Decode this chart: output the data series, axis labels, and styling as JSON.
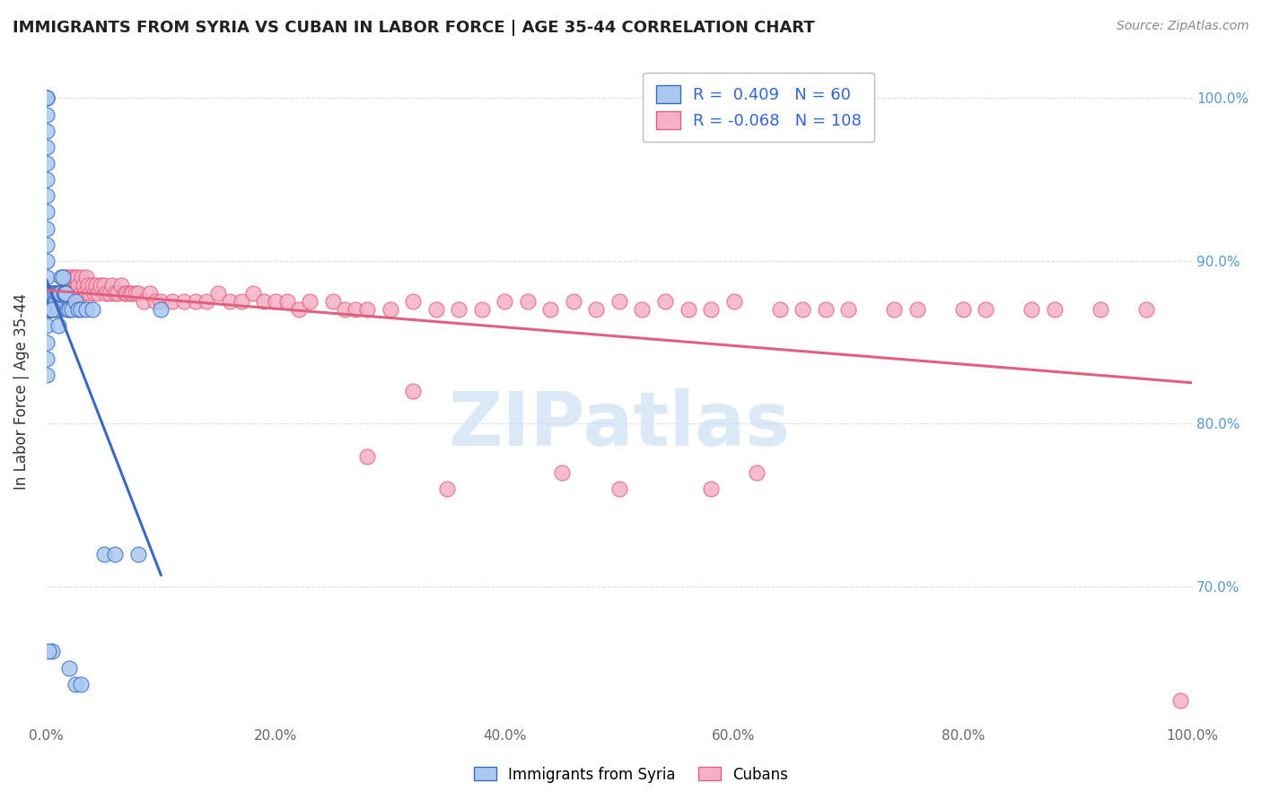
{
  "title": "IMMIGRANTS FROM SYRIA VS CUBAN IN LABOR FORCE | AGE 35-44 CORRELATION CHART",
  "source": "Source: ZipAtlas.com",
  "ylabel": "In Labor Force | Age 35-44",
  "xlim": [
    0.0,
    1.0
  ],
  "ylim": [
    0.615,
    1.025
  ],
  "syria_R": 0.409,
  "syria_N": 60,
  "cuba_R": -0.068,
  "cuba_N": 108,
  "syria_color": "#aac8f0",
  "cuba_color": "#f5b0c5",
  "syria_line_color": "#3a6abf",
  "cuba_line_color": "#e06080",
  "background_color": "#ffffff",
  "grid_color": "#dddddd",
  "watermark_text": "ZIPatlas",
  "watermark_color": "#cce0f5",
  "right_yticks": [
    0.7,
    0.8,
    0.9,
    1.0
  ],
  "right_yticklabels": [
    "70.0%",
    "80.0%",
    "90.0%",
    "100.0%"
  ],
  "xticks": [
    0.0,
    0.2,
    0.4,
    0.6,
    0.8,
    1.0
  ],
  "xticklabels": [
    "0.0%",
    "20.0%",
    "40.0%",
    "60.0%",
    "80.0%",
    "100.0%"
  ],
  "legend_syria_label": "Immigrants from Syria",
  "legend_cuba_label": "Cubans",
  "syria_x": [
    0.0,
    0.0,
    0.0,
    0.0,
    0.0,
    0.0,
    0.0,
    0.0,
    0.0,
    0.0,
    0.0,
    0.0,
    0.0,
    0.0,
    0.0,
    0.0,
    0.0,
    0.0,
    0.0,
    0.0,
    0.002,
    0.002,
    0.003,
    0.003,
    0.004,
    0.005,
    0.005,
    0.006,
    0.006,
    0.007,
    0.008,
    0.009,
    0.01,
    0.01,
    0.01,
    0.011,
    0.012,
    0.013,
    0.014,
    0.015,
    0.016,
    0.017,
    0.018,
    0.02,
    0.022,
    0.025,
    0.028,
    0.03,
    0.035,
    0.04,
    0.05,
    0.06,
    0.08,
    0.1,
    0.02,
    0.025,
    0.03,
    0.005,
    0.005,
    0.002
  ],
  "syria_y": [
    1.0,
    1.0,
    1.0,
    0.99,
    0.98,
    0.97,
    0.96,
    0.95,
    0.94,
    0.93,
    0.92,
    0.91,
    0.9,
    0.89,
    0.88,
    0.87,
    0.86,
    0.85,
    0.84,
    0.83,
    0.87,
    0.88,
    0.87,
    0.88,
    0.87,
    0.88,
    0.87,
    0.88,
    0.87,
    0.88,
    0.875,
    0.88,
    0.88,
    0.87,
    0.86,
    0.88,
    0.88,
    0.89,
    0.89,
    0.88,
    0.88,
    0.88,
    0.87,
    0.87,
    0.87,
    0.875,
    0.87,
    0.87,
    0.87,
    0.87,
    0.72,
    0.72,
    0.72,
    0.87,
    0.65,
    0.64,
    0.64,
    0.87,
    0.66,
    0.66
  ],
  "cuba_x": [
    0.0,
    0.002,
    0.003,
    0.004,
    0.005,
    0.006,
    0.007,
    0.008,
    0.01,
    0.011,
    0.012,
    0.013,
    0.014,
    0.015,
    0.016,
    0.017,
    0.018,
    0.019,
    0.02,
    0.021,
    0.022,
    0.023,
    0.025,
    0.026,
    0.027,
    0.028,
    0.03,
    0.031,
    0.032,
    0.033,
    0.035,
    0.036,
    0.038,
    0.04,
    0.042,
    0.043,
    0.045,
    0.047,
    0.05,
    0.052,
    0.055,
    0.057,
    0.06,
    0.062,
    0.065,
    0.068,
    0.07,
    0.073,
    0.075,
    0.078,
    0.08,
    0.085,
    0.09,
    0.095,
    0.1,
    0.11,
    0.12,
    0.13,
    0.14,
    0.15,
    0.16,
    0.17,
    0.18,
    0.19,
    0.2,
    0.21,
    0.22,
    0.23,
    0.25,
    0.26,
    0.27,
    0.28,
    0.3,
    0.32,
    0.34,
    0.36,
    0.38,
    0.4,
    0.42,
    0.44,
    0.46,
    0.48,
    0.5,
    0.52,
    0.54,
    0.56,
    0.58,
    0.6,
    0.64,
    0.66,
    0.68,
    0.7,
    0.74,
    0.76,
    0.8,
    0.82,
    0.86,
    0.88,
    0.92,
    0.96,
    0.28,
    0.35,
    0.45,
    0.5,
    0.58,
    0.62,
    0.32,
    0.99
  ],
  "cuba_y": [
    0.88,
    0.88,
    0.87,
    0.88,
    0.87,
    0.88,
    0.88,
    0.87,
    0.88,
    0.88,
    0.87,
    0.88,
    0.88,
    0.89,
    0.88,
    0.89,
    0.88,
    0.88,
    0.89,
    0.88,
    0.89,
    0.88,
    0.89,
    0.88,
    0.89,
    0.885,
    0.88,
    0.89,
    0.885,
    0.88,
    0.89,
    0.885,
    0.88,
    0.885,
    0.88,
    0.885,
    0.88,
    0.885,
    0.885,
    0.88,
    0.88,
    0.885,
    0.88,
    0.88,
    0.885,
    0.88,
    0.88,
    0.88,
    0.88,
    0.88,
    0.88,
    0.875,
    0.88,
    0.875,
    0.875,
    0.875,
    0.875,
    0.875,
    0.875,
    0.88,
    0.875,
    0.875,
    0.88,
    0.875,
    0.875,
    0.875,
    0.87,
    0.875,
    0.875,
    0.87,
    0.87,
    0.87,
    0.87,
    0.875,
    0.87,
    0.87,
    0.87,
    0.875,
    0.875,
    0.87,
    0.875,
    0.87,
    0.875,
    0.87,
    0.875,
    0.87,
    0.87,
    0.875,
    0.87,
    0.87,
    0.87,
    0.87,
    0.87,
    0.87,
    0.87,
    0.87,
    0.87,
    0.87,
    0.87,
    0.87,
    0.78,
    0.76,
    0.77,
    0.76,
    0.76,
    0.77,
    0.82,
    0.63
  ]
}
